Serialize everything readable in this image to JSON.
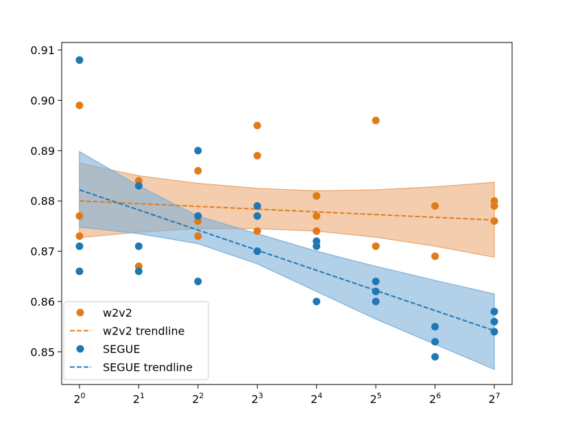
{
  "chart_data": {
    "type": "scatter",
    "title": "",
    "xlabel": "",
    "ylabel": "",
    "x_scale": "log2",
    "x_ticks": [
      0,
      1,
      2,
      3,
      4,
      5,
      6,
      7
    ],
    "x_tick_labels": [
      {
        "base": "2",
        "exp": "0"
      },
      {
        "base": "2",
        "exp": "1"
      },
      {
        "base": "2",
        "exp": "2"
      },
      {
        "base": "2",
        "exp": "3"
      },
      {
        "base": "2",
        "exp": "4"
      },
      {
        "base": "2",
        "exp": "5"
      },
      {
        "base": "2",
        "exp": "6"
      },
      {
        "base": "2",
        "exp": "7"
      }
    ],
    "xlim": [
      -0.3,
      7.3
    ],
    "ylim": [
      0.8435,
      0.9115
    ],
    "y_ticks": [
      0.85,
      0.86,
      0.87,
      0.88,
      0.89,
      0.9,
      0.91
    ],
    "y_tick_labels": [
      "0.85",
      "0.86",
      "0.87",
      "0.88",
      "0.89",
      "0.90",
      "0.91"
    ],
    "grid": false,
    "legend_position": "lower-left",
    "series": [
      {
        "name": "w2v2",
        "trend_name": "w2v2 trendline",
        "color": "#e07b1a",
        "band_color": "#e9a46a",
        "points": [
          {
            "x": 0,
            "y": 0.899
          },
          {
            "x": 0,
            "y": 0.877
          },
          {
            "x": 0,
            "y": 0.873
          },
          {
            "x": 1,
            "y": 0.884
          },
          {
            "x": 1,
            "y": 0.867
          },
          {
            "x": 2,
            "y": 0.886
          },
          {
            "x": 2,
            "y": 0.876
          },
          {
            "x": 2,
            "y": 0.873
          },
          {
            "x": 3,
            "y": 0.895
          },
          {
            "x": 3,
            "y": 0.889
          },
          {
            "x": 3,
            "y": 0.874
          },
          {
            "x": 4,
            "y": 0.881
          },
          {
            "x": 4,
            "y": 0.877
          },
          {
            "x": 4,
            "y": 0.874
          },
          {
            "x": 5,
            "y": 0.896
          },
          {
            "x": 5,
            "y": 0.871
          },
          {
            "x": 6,
            "y": 0.879
          },
          {
            "x": 6,
            "y": 0.869
          },
          {
            "x": 7,
            "y": 0.88
          },
          {
            "x": 7,
            "y": 0.879
          },
          {
            "x": 7,
            "y": 0.876
          }
        ],
        "trend": {
          "x": [
            0,
            7
          ],
          "y": [
            0.88,
            0.8762
          ]
        },
        "band": {
          "x": [
            0,
            1,
            2,
            3,
            4,
            5,
            6,
            7
          ],
          "upper": [
            0.8875,
            0.885,
            0.8835,
            0.8825,
            0.882,
            0.8822,
            0.8828,
            0.8837
          ],
          "lower": [
            0.8727,
            0.8738,
            0.8745,
            0.8745,
            0.874,
            0.8728,
            0.871,
            0.8688
          ]
        }
      },
      {
        "name": "SEGUE",
        "trend_name": "SEGUE trendline",
        "color": "#1f77b4",
        "band_color": "#7fb0d8",
        "points": [
          {
            "x": 0,
            "y": 0.908
          },
          {
            "x": 0,
            "y": 0.871
          },
          {
            "x": 0,
            "y": 0.866
          },
          {
            "x": 1,
            "y": 0.883
          },
          {
            "x": 1,
            "y": 0.871
          },
          {
            "x": 1,
            "y": 0.866
          },
          {
            "x": 2,
            "y": 0.89
          },
          {
            "x": 2,
            "y": 0.877
          },
          {
            "x": 2,
            "y": 0.864
          },
          {
            "x": 3,
            "y": 0.879
          },
          {
            "x": 3,
            "y": 0.877
          },
          {
            "x": 3,
            "y": 0.87
          },
          {
            "x": 4,
            "y": 0.872
          },
          {
            "x": 4,
            "y": 0.871
          },
          {
            "x": 4,
            "y": 0.86
          },
          {
            "x": 5,
            "y": 0.864
          },
          {
            "x": 5,
            "y": 0.862
          },
          {
            "x": 5,
            "y": 0.86
          },
          {
            "x": 6,
            "y": 0.855
          },
          {
            "x": 6,
            "y": 0.852
          },
          {
            "x": 6,
            "y": 0.849
          },
          {
            "x": 7,
            "y": 0.858
          },
          {
            "x": 7,
            "y": 0.856
          },
          {
            "x": 7,
            "y": 0.854
          }
        ],
        "trend": {
          "x": [
            0,
            7
          ],
          "y": [
            0.8822,
            0.8542
          ]
        },
        "band": {
          "x": [
            0,
            1,
            2,
            3,
            4,
            5,
            6,
            7
          ],
          "upper": [
            0.8898,
            0.883,
            0.877,
            0.8735,
            0.87,
            0.867,
            0.8642,
            0.8615
          ],
          "lower": [
            0.8748,
            0.8735,
            0.8715,
            0.8675,
            0.862,
            0.8565,
            0.8515,
            0.8465
          ]
        }
      }
    ]
  }
}
